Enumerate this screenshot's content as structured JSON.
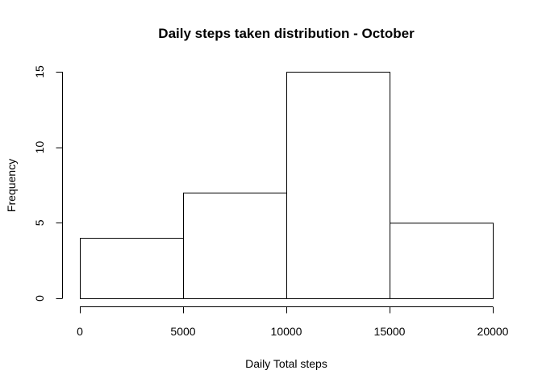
{
  "chart_data": {
    "type": "bar",
    "title": "Daily steps taken distribution  - October",
    "xlabel": "Daily Total steps",
    "ylabel": "Frequency",
    "bin_edges": [
      0,
      5000,
      10000,
      15000,
      20000
    ],
    "values": [
      4,
      7,
      15,
      5
    ],
    "xlim": [
      0,
      20000
    ],
    "ylim": [
      0,
      15
    ],
    "x_ticks": [
      0,
      5000,
      10000,
      15000,
      20000
    ],
    "y_ticks": [
      0,
      5,
      10,
      15
    ],
    "grid": false,
    "legend": "none",
    "colors": {
      "bar_fill": "#ffffff",
      "bar_stroke": "#000000"
    }
  }
}
